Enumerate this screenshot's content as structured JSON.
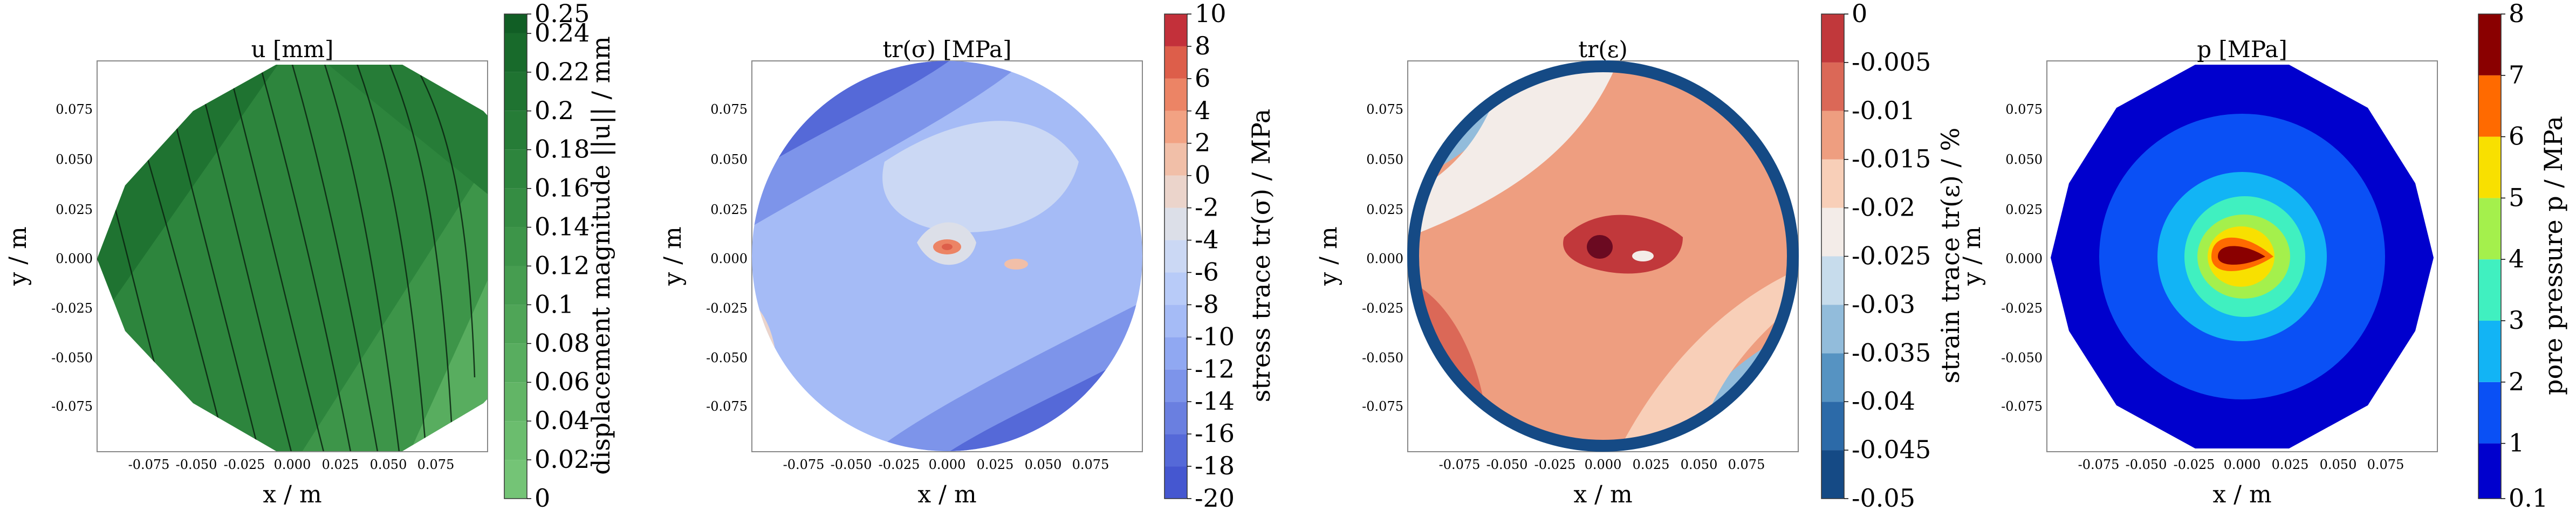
{
  "chart_data": [
    {
      "type": "contour",
      "title": "u [mm]",
      "xlabel": "x / m",
      "ylabel": "y / m",
      "xlim": [
        -0.1,
        0.1
      ],
      "ylim": [
        -0.1,
        0.1
      ],
      "xticks": [
        "-0.075",
        "-0.050",
        "-0.025",
        "0.000",
        "0.025",
        "0.050",
        "0.075"
      ],
      "yticks": [
        "0.075",
        "0.050",
        "0.025",
        "0.000",
        "-0.025",
        "-0.050",
        "-0.075"
      ],
      "streamlines": true,
      "colorbar": {
        "label": "displacement magnitude ||u|| / mm",
        "ticks": [
          "0.25",
          "0.24",
          "0.22",
          "0.2",
          "0.18",
          "0.16",
          "0.14",
          "0.12",
          "0.1",
          "0.08",
          "0.06",
          "0.04",
          "0.02",
          "0"
        ],
        "levels": [
          0,
          0.02,
          0.04,
          0.06,
          0.08,
          0.1,
          0.12,
          0.14,
          0.16,
          0.18,
          0.2,
          0.22,
          0.24,
          0.25
        ],
        "colors": [
          "#74c476",
          "#6bbd6e",
          "#62b566",
          "#58ad5f",
          "#4fa557",
          "#469d50",
          "#3d9549",
          "#358d43",
          "#2d853d",
          "#267c37",
          "#1f7331",
          "#186a2b",
          "#115e25",
          "#0b4f1f"
        ]
      }
    },
    {
      "type": "contour",
      "title": "tr(σ) [MPa]",
      "xlabel": "x / m",
      "ylabel": "y / m",
      "xlim": [
        -0.1,
        0.1
      ],
      "ylim": [
        -0.1,
        0.1
      ],
      "xticks": [
        "-0.075",
        "-0.050",
        "-0.025",
        "0.000",
        "0.025",
        "0.050",
        "0.075"
      ],
      "yticks": [
        "0.075",
        "0.050",
        "0.025",
        "0.000",
        "-0.025",
        "-0.050",
        "-0.075"
      ],
      "colorbar": {
        "label": "stress trace tr(σ) / MPa",
        "ticks": [
          "10",
          "8",
          "6",
          "4",
          "2",
          "0",
          "-2",
          "-4",
          "-6",
          "-8",
          "-10",
          "-12",
          "-14",
          "-16",
          "-18",
          "-20"
        ],
        "levels": [
          -20,
          -18,
          -16,
          -14,
          -12,
          -10,
          -8,
          -6,
          -4,
          -2,
          0,
          2,
          4,
          6,
          8,
          10
        ],
        "colors": [
          "#4557d0",
          "#5569d8",
          "#6a7fe0",
          "#7d94ea",
          "#90a8f2",
          "#a5bbf6",
          "#b8cbf8",
          "#cbd8f4",
          "#dcdfe8",
          "#ebd4cb",
          "#f1bfa8",
          "#f2a283",
          "#ec8465",
          "#dd5e4a",
          "#c3303a"
        ]
      }
    },
    {
      "type": "contour",
      "title": "tr(ε)",
      "xlabel": "x / m",
      "ylabel": "y / m",
      "xlim": [
        -0.1,
        0.1
      ],
      "ylim": [
        -0.1,
        0.1
      ],
      "xticks": [
        "-0.075",
        "-0.050",
        "-0.025",
        "0.000",
        "0.025",
        "0.050",
        "0.075"
      ],
      "yticks": [
        "0.075",
        "0.050",
        "0.025",
        "0.000",
        "-0.025",
        "-0.050",
        "-0.075"
      ],
      "colorbar": {
        "label": "strain trace tr(ε) / %",
        "ticks": [
          "0",
          "-0.005",
          "-0.01",
          "-0.015",
          "-0.02",
          "-0.025",
          "-0.03",
          "-0.035",
          "-0.04",
          "-0.045",
          "-0.05"
        ],
        "levels": [
          -0.05,
          -0.045,
          -0.04,
          -0.035,
          -0.03,
          -0.025,
          -0.02,
          -0.015,
          -0.01,
          -0.005,
          0
        ],
        "colors": [
          "#154a85",
          "#2c6aa8",
          "#5693c2",
          "#92bcdb",
          "#c7dcec",
          "#f3ece8",
          "#f8cfb8",
          "#ee9e80",
          "#db6857",
          "#c1383b",
          "#6b0a21"
        ]
      }
    },
    {
      "type": "contour",
      "title": "p [MPa]",
      "xlabel": "x / m",
      "ylabel": "y / m",
      "xlim": [
        -0.1,
        0.1
      ],
      "ylim": [
        -0.1,
        0.1
      ],
      "xticks": [
        "-0.075",
        "-0.050",
        "-0.025",
        "0.000",
        "0.025",
        "0.050",
        "0.075"
      ],
      "yticks": [
        "0.075",
        "0.050",
        "0.025",
        "0.000",
        "-0.025",
        "-0.050",
        "-0.075"
      ],
      "colorbar": {
        "label": "pore pressure p / MPa",
        "ticks": [
          "8",
          "7",
          "6",
          "5",
          "4",
          "3",
          "2",
          "1",
          "0.1"
        ],
        "levels": [
          0.1,
          1,
          2,
          3,
          4,
          5,
          6,
          7,
          8
        ],
        "colors": [
          "#0000cd",
          "#0a50f5",
          "#12b4f5",
          "#40f0c0",
          "#a4f04c",
          "#f8e000",
          "#ff6a00",
          "#8a0000"
        ]
      }
    }
  ]
}
